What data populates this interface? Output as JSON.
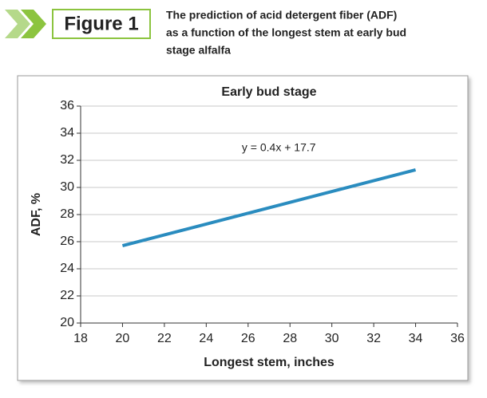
{
  "figure_label": "Figure 1",
  "caption": [
    "The prediction of acid detergent fiber (ADF)",
    "as a function of the longest stem at early bud",
    "stage alfalfa"
  ],
  "chart_data": {
    "type": "line",
    "title": "Early bud stage",
    "x": [
      20,
      34
    ],
    "series": [
      {
        "name": "Early bud stage",
        "color": "#2a8cbf",
        "values": [
          25.7,
          31.3
        ]
      }
    ],
    "annotation": "y = 0.4x + 17.7",
    "xlabel": "Longest stem, inches",
    "ylabel": "ADF, %",
    "xlim": [
      18,
      36
    ],
    "ylim": [
      20,
      36
    ],
    "xticks": [
      18,
      20,
      22,
      24,
      26,
      28,
      30,
      32,
      34,
      36
    ],
    "yticks": [
      20,
      22,
      24,
      26,
      28,
      30,
      32,
      34,
      36
    ],
    "grid": true
  }
}
